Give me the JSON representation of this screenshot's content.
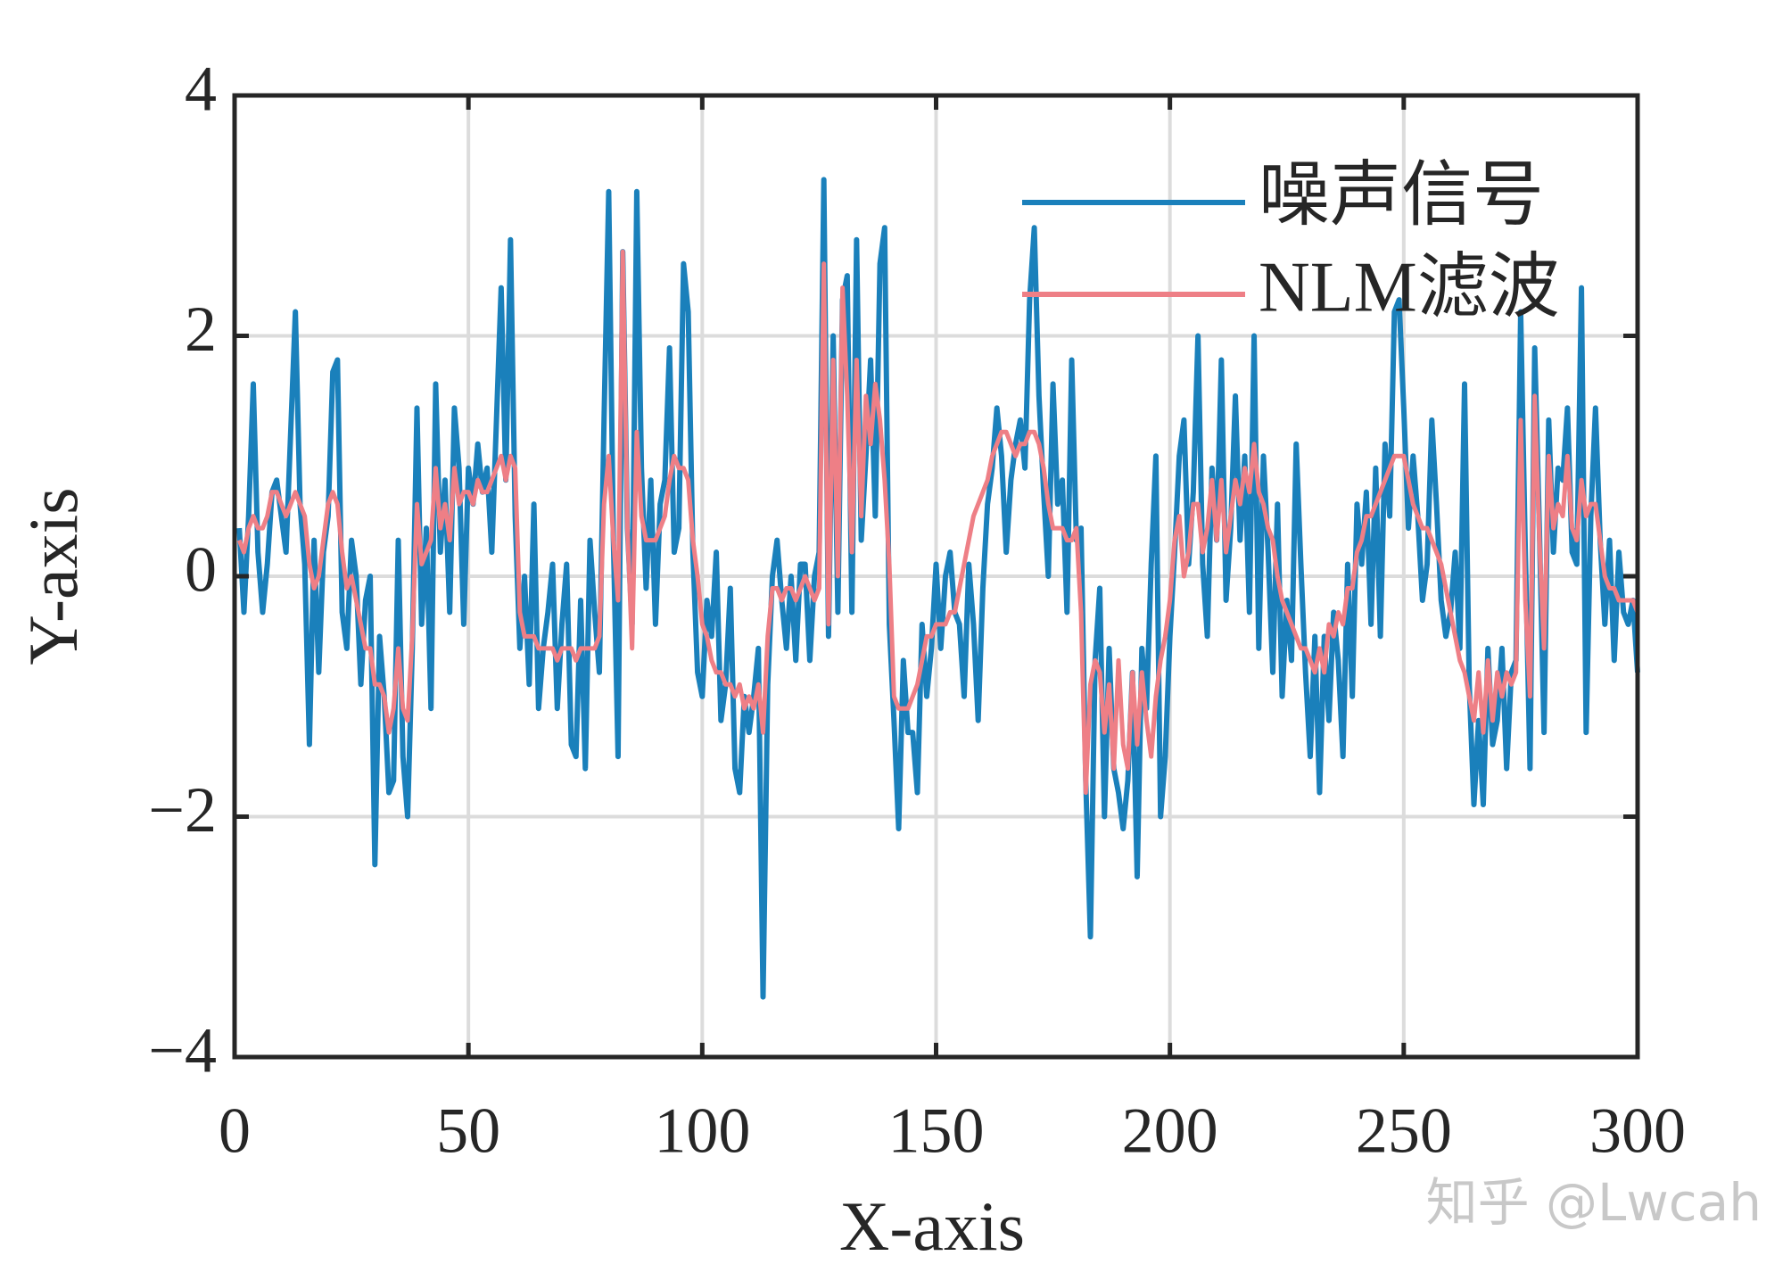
{
  "chart_data": {
    "type": "line",
    "xlabel": "X-axis",
    "ylabel": "Y-axis",
    "xlim": [
      0,
      300
    ],
    "ylim": [
      -4,
      4
    ],
    "xticks": [
      0,
      50,
      100,
      150,
      200,
      250,
      300
    ],
    "yticks": [
      {
        "value": -4,
        "label": "−4"
      },
      {
        "value": -2,
        "label": "−2"
      },
      0,
      2,
      4
    ],
    "grid": true,
    "legend": "upper right",
    "annotation": "知乎 @Lwcah",
    "x": [
      1,
      2,
      3,
      4,
      5,
      6,
      7,
      8,
      9,
      10,
      11,
      12,
      13,
      14,
      15,
      16,
      17,
      18,
      19,
      20,
      21,
      22,
      23,
      24,
      25,
      26,
      27,
      28,
      29,
      30,
      31,
      32,
      33,
      34,
      35,
      36,
      37,
      38,
      39,
      40,
      41,
      42,
      43,
      44,
      45,
      46,
      47,
      48,
      49,
      50,
      51,
      52,
      53,
      54,
      55,
      56,
      57,
      58,
      59,
      60,
      61,
      62,
      63,
      64,
      65,
      66,
      67,
      68,
      69,
      70,
      71,
      72,
      73,
      74,
      75,
      76,
      77,
      78,
      79,
      80,
      81,
      82,
      83,
      84,
      85,
      86,
      87,
      88,
      89,
      90,
      91,
      92,
      93,
      94,
      95,
      96,
      97,
      98,
      99,
      100,
      101,
      102,
      103,
      104,
      105,
      106,
      107,
      108,
      109,
      110,
      111,
      112,
      113,
      114,
      115,
      116,
      117,
      118,
      119,
      120,
      121,
      122,
      123,
      124,
      125,
      126,
      127,
      128,
      129,
      130,
      131,
      132,
      133,
      134,
      135,
      136,
      137,
      138,
      139,
      140,
      141,
      142,
      143,
      144,
      145,
      146,
      147,
      148,
      149,
      150,
      151,
      152,
      153,
      154,
      155,
      156,
      157,
      158,
      159,
      160,
      161,
      162,
      163,
      164,
      165,
      166,
      167,
      168,
      169,
      170,
      171,
      172,
      173,
      174,
      175,
      176,
      177,
      178,
      179,
      180,
      181,
      182,
      183,
      184,
      185,
      186,
      187,
      188,
      189,
      190,
      191,
      192,
      193,
      194,
      195,
      196,
      197,
      198,
      199,
      200,
      201,
      202,
      203,
      204,
      205,
      206,
      207,
      208,
      209,
      210,
      211,
      212,
      213,
      214,
      215,
      216,
      217,
      218,
      219,
      220,
      221,
      222,
      223,
      224,
      225,
      226,
      227,
      228,
      229,
      230,
      231,
      232,
      233,
      234,
      235,
      236,
      237,
      238,
      239,
      240,
      241,
      242,
      243,
      244,
      245,
      246,
      247,
      248,
      249,
      250,
      251,
      252,
      253,
      254,
      255,
      256,
      257,
      258,
      259,
      260,
      261,
      262,
      263,
      264,
      265,
      266,
      267,
      268,
      269,
      270,
      271,
      272,
      273,
      274,
      275,
      276,
      277,
      278,
      279,
      280,
      281,
      282,
      283,
      284,
      285,
      286,
      287,
      288,
      289,
      290,
      291,
      292,
      293,
      294,
      295,
      296,
      297,
      298,
      299,
      300
    ],
    "series": [
      {
        "name": "噪声信号",
        "color": "#1a80bb",
        "values": [
          0.4,
          -0.3,
          0.5,
          1.6,
          0.2,
          -0.3,
          0.1,
          0.7,
          0.8,
          0.5,
          0.2,
          1.2,
          2.2,
          0.6,
          0.1,
          -1.4,
          0.3,
          -0.8,
          0.2,
          0.5,
          1.7,
          1.8,
          -0.3,
          -0.6,
          0.3,
          0.0,
          -0.9,
          -0.2,
          0.0,
          -2.4,
          -0.5,
          -1.0,
          -1.8,
          -1.7,
          0.3,
          -1.5,
          -2.0,
          -0.6,
          1.4,
          -0.4,
          0.4,
          -1.1,
          1.6,
          0.2,
          0.8,
          -0.3,
          1.4,
          0.9,
          -0.4,
          0.9,
          0.6,
          1.1,
          0.7,
          0.9,
          0.2,
          1.3,
          2.4,
          0.8,
          2.8,
          0.5,
          -0.6,
          0.0,
          -0.9,
          0.6,
          -1.1,
          -0.6,
          -0.3,
          0.1,
          -1.1,
          -0.4,
          0.1,
          -1.4,
          -1.5,
          -0.2,
          -1.6,
          0.3,
          -0.3,
          -0.8,
          1.3,
          3.2,
          0.3,
          -1.5,
          2.7,
          0.4,
          -0.4,
          3.2,
          0.9,
          -0.1,
          0.8,
          -0.4,
          0.6,
          0.8,
          1.9,
          0.2,
          0.4,
          2.6,
          2.2,
          0.2,
          -0.8,
          -1.0,
          -0.2,
          -0.5,
          0.2,
          -1.2,
          -0.9,
          -0.1,
          -1.6,
          -1.8,
          -1.0,
          -1.3,
          -1.0,
          -0.6,
          -3.5,
          -0.9,
          0.0,
          0.3,
          -0.2,
          -0.6,
          0.0,
          -0.7,
          0.1,
          0.1,
          -0.7,
          0.0,
          0.2,
          3.3,
          -0.5,
          2.0,
          -0.3,
          2.3,
          2.5,
          -0.3,
          2.8,
          0.3,
          1.0,
          1.8,
          0.5,
          2.6,
          2.9,
          -0.4,
          -1.2,
          -2.1,
          -0.7,
          -1.3,
          -1.3,
          -1.8,
          -0.4,
          -1.0,
          -0.6,
          0.1,
          -0.6,
          0.0,
          0.2,
          -0.3,
          -0.4,
          -1.0,
          0.1,
          -0.4,
          -1.2,
          -0.1,
          0.6,
          0.9,
          1.4,
          1.0,
          0.2,
          0.8,
          1.1,
          1.3,
          0.9,
          2.3,
          2.9,
          1.5,
          0.7,
          0.0,
          1.6,
          0.6,
          0.8,
          -0.3,
          1.8,
          0.3,
          0.4,
          -1.7,
          -3.0,
          -0.7,
          -0.1,
          -2.0,
          -0.6,
          -1.6,
          -1.8,
          -2.1,
          -1.7,
          -0.8,
          -2.5,
          -0.6,
          -1.1,
          0.1,
          1.0,
          -2.0,
          -1.5,
          -0.5,
          0.2,
          1.0,
          1.3,
          0.1,
          0.7,
          2.0,
          0.1,
          -0.5,
          0.9,
          0.3,
          1.8,
          -0.2,
          0.4,
          1.5,
          0.3,
          1.0,
          -0.3,
          2.0,
          -0.6,
          1.0,
          0.2,
          -0.8,
          0.6,
          -1.0,
          -0.2,
          -0.7,
          1.1,
          0.1,
          -0.8,
          -1.5,
          -0.5,
          -1.8,
          -0.5,
          -1.2,
          -0.3,
          -0.7,
          -1.5,
          0.1,
          -1.0,
          0.6,
          0.1,
          0.7,
          -0.4,
          0.9,
          -0.5,
          1.1,
          0.5,
          2.2,
          2.3,
          1.4,
          0.4,
          1.0,
          0.5,
          -0.2,
          0.1,
          1.3,
          0.6,
          -0.2,
          -0.5,
          -0.3,
          0.2,
          -0.6,
          1.6,
          -0.9,
          -1.9,
          -1.2,
          -1.9,
          -0.6,
          -1.4,
          -1.2,
          -0.6,
          -1.6,
          -0.8,
          -0.7,
          2.2,
          0.2,
          -1.6,
          1.9,
          0.4,
          -1.3,
          1.3,
          0.2,
          0.9,
          0.8,
          1.4,
          0.2,
          0.1,
          2.4,
          -1.3,
          0.5,
          1.4,
          0.3,
          -0.4,
          0.3,
          -0.7,
          0.2,
          -0.3,
          -0.4,
          -0.2,
          -0.8
        ]
      },
      {
        "name": "NLM滤波",
        "color": "#ee7f86",
        "values": [
          0.3,
          0.2,
          0.4,
          0.5,
          0.4,
          0.4,
          0.5,
          0.7,
          0.7,
          0.6,
          0.5,
          0.6,
          0.7,
          0.6,
          0.5,
          0.1,
          -0.1,
          0.0,
          0.3,
          0.6,
          0.7,
          0.6,
          0.2,
          -0.1,
          0.0,
          -0.2,
          -0.4,
          -0.6,
          -0.6,
          -0.9,
          -0.9,
          -1.0,
          -1.3,
          -1.1,
          -0.6,
          -1.1,
          -1.2,
          -0.5,
          0.6,
          0.1,
          0.2,
          0.3,
          0.9,
          0.4,
          0.6,
          0.3,
          0.9,
          0.6,
          0.7,
          0.7,
          0.6,
          0.8,
          0.7,
          0.7,
          0.8,
          0.9,
          1.0,
          0.8,
          1.0,
          0.9,
          -0.3,
          -0.5,
          -0.5,
          -0.5,
          -0.6,
          -0.6,
          -0.6,
          -0.6,
          -0.7,
          -0.6,
          -0.6,
          -0.6,
          -0.7,
          -0.6,
          -0.6,
          -0.6,
          -0.6,
          -0.5,
          0.6,
          1.0,
          0.3,
          -0.2,
          2.7,
          0.4,
          -0.6,
          1.2,
          0.5,
          0.3,
          0.3,
          0.3,
          0.4,
          0.5,
          0.8,
          1.0,
          0.9,
          0.9,
          0.8,
          0.3,
          0.0,
          -0.4,
          -0.5,
          -0.7,
          -0.8,
          -0.8,
          -0.9,
          -0.9,
          -1.0,
          -0.9,
          -1.1,
          -1.0,
          -1.1,
          -0.9,
          -1.3,
          -0.5,
          -0.1,
          -0.1,
          -0.2,
          -0.1,
          -0.1,
          -0.2,
          -0.1,
          0.0,
          -0.1,
          -0.2,
          -0.1,
          2.6,
          -0.4,
          1.8,
          0.0,
          2.4,
          1.5,
          0.2,
          1.8,
          0.5,
          1.5,
          1.1,
          1.6,
          1.3,
          0.8,
          0.1,
          -1.0,
          -1.1,
          -1.1,
          -1.1,
          -1.0,
          -0.9,
          -0.7,
          -0.5,
          -0.5,
          -0.4,
          -0.4,
          -0.4,
          -0.3,
          -0.3,
          -0.1,
          0.1,
          0.3,
          0.5,
          0.6,
          0.7,
          0.8,
          1.0,
          1.1,
          1.2,
          1.2,
          1.1,
          1.0,
          1.1,
          1.1,
          1.2,
          1.2,
          1.1,
          0.9,
          0.6,
          0.4,
          0.4,
          0.4,
          0.3,
          0.3,
          0.4,
          -0.3,
          -1.8,
          -0.9,
          -0.7,
          -0.8,
          -1.3,
          -0.9,
          -1.6,
          -0.7,
          -1.4,
          -1.6,
          -0.8,
          -1.4,
          -0.8,
          -1.2,
          -1.5,
          -1.0,
          -0.7,
          -0.5,
          -0.2,
          0.3,
          0.5,
          0.0,
          0.2,
          0.6,
          0.6,
          0.2,
          0.4,
          0.8,
          0.3,
          0.8,
          0.2,
          0.5,
          0.8,
          0.6,
          0.9,
          0.7,
          1.1,
          0.7,
          0.6,
          0.4,
          0.3,
          0.0,
          -0.2,
          -0.3,
          -0.4,
          -0.5,
          -0.6,
          -0.6,
          -0.7,
          -0.8,
          -0.6,
          -0.8,
          -0.4,
          -0.5,
          -0.3,
          -0.4,
          -0.1,
          -0.1,
          0.2,
          0.3,
          0.5,
          0.5,
          0.6,
          0.7,
          0.8,
          0.9,
          1.0,
          1.0,
          1.0,
          0.8,
          0.6,
          0.5,
          0.4,
          0.4,
          0.3,
          0.2,
          0.1,
          -0.1,
          -0.3,
          -0.5,
          -0.7,
          -0.8,
          -1.0,
          -1.2,
          -0.8,
          -1.3,
          -0.7,
          -1.2,
          -0.8,
          -1.0,
          -0.8,
          -0.9,
          -0.8,
          1.3,
          -0.2,
          -1.0,
          1.5,
          0.3,
          -0.6,
          1.0,
          0.4,
          0.6,
          0.5,
          1.0,
          0.4,
          0.3,
          0.8,
          0.5,
          0.6,
          0.6,
          0.3,
          0.0,
          -0.1,
          -0.1,
          -0.2,
          -0.2,
          -0.2,
          -0.2,
          -0.3
        ]
      }
    ]
  }
}
